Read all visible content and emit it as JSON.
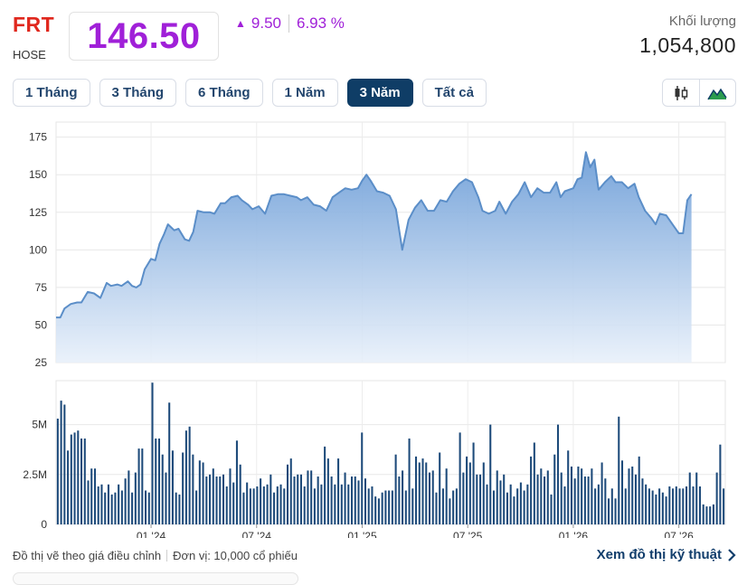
{
  "header": {
    "ticker": "FRT",
    "exchange": "HOSE",
    "price": "146.50",
    "change_abs": "9.50",
    "change_pct": "6.93 %",
    "volume_label": "Khối lượng",
    "volume_value": "1,054,800"
  },
  "colors": {
    "ticker": "#e0281e",
    "price": "#a020d8",
    "active_tab": "#0f3d66",
    "line": "#5b8ec8",
    "volume_bar": "#1d4a7a"
  },
  "tabs": [
    {
      "label": "1 Tháng",
      "active": false
    },
    {
      "label": "3 Tháng",
      "active": false
    },
    {
      "label": "6 Tháng",
      "active": false
    },
    {
      "label": "1 Năm",
      "active": false
    },
    {
      "label": "3 Năm",
      "active": true
    },
    {
      "label": "Tất cả",
      "active": false
    }
  ],
  "chart_types": [
    "candlestick-icon",
    "mountain-icon"
  ],
  "footer": {
    "note": "Đồ thị vẽ theo giá điều chỉnh",
    "unit": "Đơn vị: 10,000 cổ phiếu",
    "link": "Xem đồ thị kỹ thuật"
  },
  "chart_data": [
    {
      "type": "area",
      "x_range": [
        2023.55,
        2026.72
      ],
      "ylim": [
        25,
        185
      ],
      "yticks": [
        25,
        50,
        75,
        100,
        125,
        150,
        175
      ],
      "xticks": [
        {
          "label": "01 '24",
          "t": 2024.0
        },
        {
          "label": "07 '24",
          "t": 2024.5
        },
        {
          "label": "01 '25",
          "t": 2025.0
        },
        {
          "label": "07 '25",
          "t": 2025.5
        },
        {
          "label": "01 '26",
          "t": 2026.0
        },
        {
          "label": "07 '26",
          "t": 2026.5
        }
      ],
      "grid": true,
      "points": [
        [
          2023.55,
          55
        ],
        [
          2023.57,
          55
        ],
        [
          2023.59,
          61
        ],
        [
          2023.62,
          64
        ],
        [
          2023.65,
          65
        ],
        [
          2023.67,
          65
        ],
        [
          2023.7,
          72
        ],
        [
          2023.73,
          71
        ],
        [
          2023.76,
          68
        ],
        [
          2023.79,
          78
        ],
        [
          2023.81,
          76
        ],
        [
          2023.84,
          77
        ],
        [
          2023.86,
          76
        ],
        [
          2023.89,
          79
        ],
        [
          2023.91,
          76
        ],
        [
          2023.93,
          75
        ],
        [
          2023.95,
          77
        ],
        [
          2023.97,
          87
        ],
        [
          2024.0,
          94
        ],
        [
          2024.02,
          93
        ],
        [
          2024.04,
          104
        ],
        [
          2024.06,
          110
        ],
        [
          2024.08,
          117
        ],
        [
          2024.11,
          113
        ],
        [
          2024.13,
          114
        ],
        [
          2024.16,
          107
        ],
        [
          2024.18,
          106
        ],
        [
          2024.2,
          112
        ],
        [
          2024.22,
          126
        ],
        [
          2024.25,
          125
        ],
        [
          2024.28,
          125
        ],
        [
          2024.3,
          124
        ],
        [
          2024.33,
          131
        ],
        [
          2024.35,
          131
        ],
        [
          2024.38,
          135
        ],
        [
          2024.41,
          136
        ],
        [
          2024.43,
          133
        ],
        [
          2024.46,
          130
        ],
        [
          2024.48,
          127
        ],
        [
          2024.51,
          129
        ],
        [
          2024.54,
          124
        ],
        [
          2024.57,
          136
        ],
        [
          2024.6,
          137
        ],
        [
          2024.63,
          137
        ],
        [
          2024.66,
          136
        ],
        [
          2024.69,
          135
        ],
        [
          2024.71,
          133
        ],
        [
          2024.74,
          135
        ],
        [
          2024.77,
          130
        ],
        [
          2024.8,
          129
        ],
        [
          2024.83,
          126
        ],
        [
          2024.86,
          135
        ],
        [
          2024.89,
          138
        ],
        [
          2024.92,
          141
        ],
        [
          2024.95,
          140
        ],
        [
          2024.98,
          141
        ],
        [
          2025.0,
          146
        ],
        [
          2025.02,
          150
        ],
        [
          2025.04,
          146
        ],
        [
          2025.07,
          139
        ],
        [
          2025.1,
          138
        ],
        [
          2025.13,
          136
        ],
        [
          2025.16,
          127
        ],
        [
          2025.19,
          100
        ],
        [
          2025.22,
          120
        ],
        [
          2025.25,
          128
        ],
        [
          2025.28,
          133
        ],
        [
          2025.31,
          126
        ],
        [
          2025.34,
          126
        ],
        [
          2025.37,
          133
        ],
        [
          2025.4,
          132
        ],
        [
          2025.43,
          139
        ],
        [
          2025.46,
          144
        ],
        [
          2025.49,
          147
        ],
        [
          2025.52,
          145
        ],
        [
          2025.55,
          135
        ],
        [
          2025.57,
          126
        ],
        [
          2025.6,
          124
        ],
        [
          2025.63,
          126
        ],
        [
          2025.65,
          132
        ],
        [
          2025.68,
          124
        ],
        [
          2025.71,
          132
        ],
        [
          2025.74,
          137
        ],
        [
          2025.77,
          145
        ],
        [
          2025.8,
          135
        ],
        [
          2025.83,
          141
        ],
        [
          2025.86,
          138
        ],
        [
          2025.89,
          138
        ],
        [
          2025.92,
          145
        ],
        [
          2025.94,
          135
        ],
        [
          2025.96,
          139
        ],
        [
          2025.98,
          140
        ],
        [
          2026.0,
          141
        ],
        [
          2026.02,
          147
        ],
        [
          2026.04,
          148
        ],
        [
          2026.06,
          165
        ],
        [
          2026.08,
          155
        ],
        [
          2026.1,
          160
        ],
        [
          2026.12,
          140
        ],
        [
          2026.15,
          145
        ],
        [
          2026.18,
          149
        ],
        [
          2026.2,
          145
        ],
        [
          2026.23,
          145
        ],
        [
          2026.26,
          141
        ],
        [
          2026.29,
          144
        ],
        [
          2026.31,
          135
        ],
        [
          2026.34,
          126
        ],
        [
          2026.37,
          121
        ],
        [
          2026.39,
          117
        ],
        [
          2026.41,
          124
        ],
        [
          2026.44,
          123
        ],
        [
          2026.47,
          117
        ],
        [
          2026.5,
          111
        ],
        [
          2026.52,
          111
        ],
        [
          2026.54,
          133
        ],
        [
          2026.56,
          137
        ]
      ]
    },
    {
      "type": "bar",
      "ylim": [
        0,
        7.2
      ],
      "yticks": [
        {
          "value": 0,
          "label": "0"
        },
        {
          "value": 2.5,
          "label": "2.5M"
        },
        {
          "value": 5,
          "label": "5M"
        }
      ],
      "volumes": [
        5.3,
        6.2,
        6.0,
        3.7,
        4.5,
        4.6,
        4.7,
        4.3,
        4.3,
        2.2,
        2.8,
        2.8,
        1.9,
        2.0,
        1.6,
        2.0,
        1.5,
        1.6,
        2.0,
        1.7,
        2.3,
        2.7,
        1.6,
        2.6,
        3.8,
        3.8,
        1.7,
        1.6,
        7.1,
        4.3,
        4.3,
        3.5,
        2.6,
        6.1,
        3.7,
        1.6,
        1.5,
        3.6,
        4.7,
        4.9,
        3.5,
        1.7,
        3.2,
        3.1,
        2.4,
        2.5,
        2.8,
        2.4,
        2.4,
        2.5,
        1.9,
        2.8,
        2.1,
        4.2,
        3.0,
        1.6,
        2.1,
        1.8,
        1.8,
        1.9,
        2.3,
        1.9,
        2.0,
        2.5,
        1.6,
        1.9,
        2.0,
        1.8,
        3.0,
        3.3,
        2.4,
        2.5,
        2.5,
        1.9,
        2.7,
        2.7,
        1.8,
        2.4,
        2.0,
        3.9,
        3.3,
        2.4,
        2.0,
        3.3,
        2.0,
        2.6,
        2.0,
        2.4,
        2.4,
        2.2,
        4.6,
        2.3,
        1.8,
        1.9,
        1.4,
        1.3,
        1.6,
        1.7,
        1.7,
        1.7,
        3.5,
        2.4,
        2.7,
        1.7,
        4.3,
        1.8,
        3.4,
        3.1,
        3.3,
        3.1,
        2.6,
        2.7,
        1.6,
        3.6,
        1.8,
        2.8,
        1.3,
        1.7,
        1.8,
        4.6,
        2.6,
        3.4,
        3.1,
        4.1,
        2.5,
        2.5,
        3.1,
        2.0,
        5.0,
        1.7,
        2.7,
        2.2,
        2.5,
        1.6,
        2.0,
        1.4,
        1.8,
        2.1,
        1.7,
        2.0,
        3.4,
        4.1,
        2.5,
        2.8,
        2.4,
        2.7,
        1.5,
        3.5,
        5.0,
        2.6,
        1.9,
        3.7,
        2.9,
        2.3,
        2.9,
        2.8,
        2.4,
        2.4,
        2.8,
        1.8,
        2.0,
        3.1,
        2.3,
        1.3,
        1.8,
        1.3,
        5.4,
        3.2,
        1.8,
        2.8,
        2.9,
        2.5,
        3.4,
        2.3,
        2.0,
        1.8,
        1.7,
        1.5,
        1.8,
        1.6,
        1.4,
        1.9,
        1.8,
        1.9,
        1.8,
        1.8,
        1.9,
        2.6,
        1.9,
        2.6,
        1.9,
        1.0,
        0.9,
        0.9,
        1.0,
        2.6,
        4.0,
        1.8
      ]
    }
  ]
}
